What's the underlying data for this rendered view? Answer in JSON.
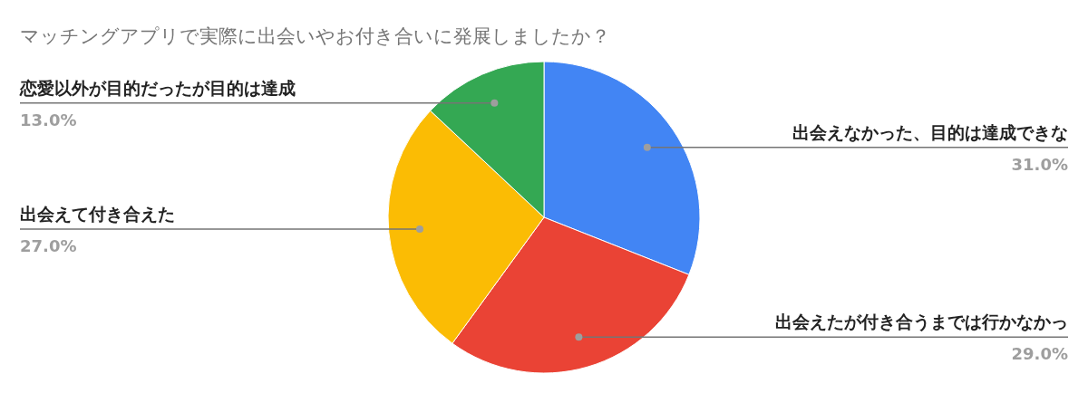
{
  "chart_data": {
    "type": "pie",
    "title": "マッチングアプリで実際に出会いやお付き合いに発展しましたか？",
    "categories": [
      "出会えなかった、目的は達成できな",
      "出会えたが付き合うまでは行かなかっ",
      "出会えて付き合えた",
      "恋愛以外が目的だったが目的は達成"
    ],
    "values": [
      31,
      29,
      27,
      13
    ],
    "colors": [
      "#4285f4",
      "#ea4335",
      "#fbbc04",
      "#34a853"
    ],
    "value_labels": [
      "31.0%",
      "29.0%",
      "27.0%",
      "13.0%"
    ]
  }
}
